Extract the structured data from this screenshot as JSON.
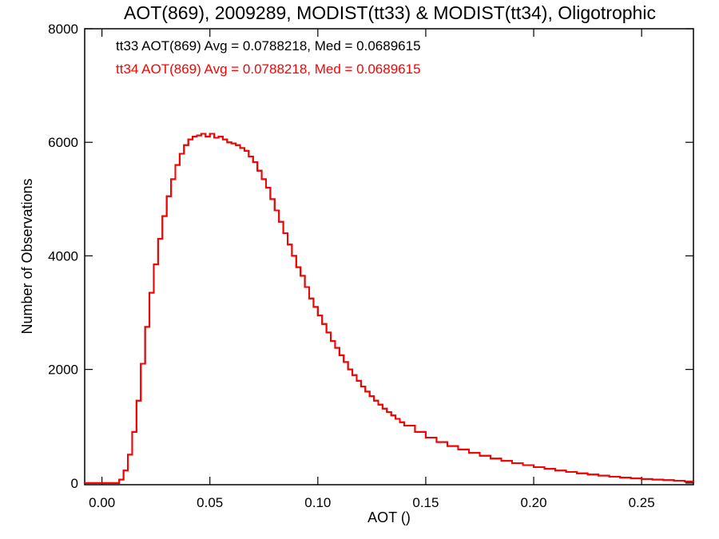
{
  "chart_data": {
    "type": "line",
    "title": "AOT(869), 2009289, MODIST(tt33) & MODIST(tt34), Oligotrophic",
    "xlabel": "AOT ()",
    "ylabel": "Number of Observations",
    "xlim": [
      -0.008,
      0.274
    ],
    "ylim": [
      -30,
      8000
    ],
    "x_ticks": [
      0.0,
      0.05,
      0.1,
      0.15,
      0.2,
      0.25
    ],
    "x_tick_labels": [
      "0.00",
      "0.05",
      "0.10",
      "0.15",
      "0.20",
      "0.25"
    ],
    "y_ticks": [
      0,
      2000,
      4000,
      6000,
      8000
    ],
    "y_tick_labels": [
      "0",
      "2000",
      "4000",
      "6000",
      "8000"
    ],
    "grid": false,
    "step": "histogram",
    "annotations": [
      {
        "text": "tt33 AOT(869) Avg = 0.0788218, Med = 0.0689615",
        "color": "#000000"
      },
      {
        "text": "tt34 AOT(869) Avg = 0.0788218, Med = 0.0689615",
        "color": "#ff0000"
      }
    ],
    "x": [
      0.0,
      0.005,
      0.008,
      0.01,
      0.012,
      0.014,
      0.016,
      0.018,
      0.02,
      0.022,
      0.024,
      0.026,
      0.028,
      0.03,
      0.032,
      0.034,
      0.036,
      0.038,
      0.04,
      0.042,
      0.044,
      0.046,
      0.048,
      0.05,
      0.052,
      0.054,
      0.056,
      0.058,
      0.06,
      0.062,
      0.064,
      0.066,
      0.068,
      0.07,
      0.072,
      0.074,
      0.076,
      0.078,
      0.08,
      0.082,
      0.084,
      0.086,
      0.088,
      0.09,
      0.092,
      0.094,
      0.096,
      0.098,
      0.1,
      0.102,
      0.104,
      0.106,
      0.108,
      0.11,
      0.112,
      0.114,
      0.116,
      0.118,
      0.12,
      0.122,
      0.124,
      0.126,
      0.128,
      0.13,
      0.132,
      0.134,
      0.136,
      0.138,
      0.14,
      0.145,
      0.15,
      0.155,
      0.16,
      0.165,
      0.17,
      0.175,
      0.18,
      0.185,
      0.19,
      0.195,
      0.2,
      0.205,
      0.21,
      0.215,
      0.22,
      0.225,
      0.23,
      0.235,
      0.24,
      0.245,
      0.25,
      0.255,
      0.26,
      0.265,
      0.27,
      0.274
    ],
    "series": [
      {
        "name": "tt33",
        "color": "#000000",
        "values": [
          0,
          0,
          60,
          220,
          500,
          900,
          1450,
          2100,
          2750,
          3350,
          3850,
          4300,
          4700,
          5050,
          5350,
          5600,
          5800,
          5950,
          6050,
          6100,
          6120,
          6150,
          6100,
          6150,
          6080,
          6100,
          6050,
          6000,
          5980,
          5950,
          5900,
          5850,
          5750,
          5650,
          5500,
          5350,
          5200,
          5000,
          4800,
          4600,
          4400,
          4200,
          4000,
          3800,
          3650,
          3450,
          3250,
          3100,
          2950,
          2800,
          2650,
          2500,
          2380,
          2250,
          2130,
          2000,
          1900,
          1800,
          1700,
          1610,
          1530,
          1450,
          1380,
          1310,
          1250,
          1190,
          1130,
          1070,
          1010,
          900,
          800,
          720,
          650,
          590,
          530,
          480,
          430,
          390,
          350,
          315,
          280,
          250,
          220,
          195,
          170,
          150,
          130,
          110,
          95,
          80,
          70,
          60,
          50,
          40,
          25,
          15
        ]
      },
      {
        "name": "tt34",
        "color": "#ff0000",
        "values": [
          0,
          0,
          60,
          220,
          500,
          900,
          1450,
          2100,
          2750,
          3350,
          3850,
          4300,
          4700,
          5050,
          5350,
          5600,
          5800,
          5950,
          6050,
          6100,
          6120,
          6150,
          6100,
          6150,
          6080,
          6100,
          6050,
          6000,
          5980,
          5950,
          5900,
          5850,
          5750,
          5650,
          5500,
          5350,
          5200,
          5000,
          4800,
          4600,
          4400,
          4200,
          4000,
          3800,
          3650,
          3450,
          3250,
          3100,
          2950,
          2800,
          2650,
          2500,
          2380,
          2250,
          2130,
          2000,
          1900,
          1800,
          1700,
          1610,
          1530,
          1450,
          1380,
          1310,
          1250,
          1190,
          1130,
          1070,
          1010,
          900,
          800,
          720,
          650,
          590,
          530,
          480,
          430,
          390,
          350,
          315,
          280,
          250,
          220,
          195,
          170,
          150,
          130,
          110,
          95,
          80,
          70,
          60,
          50,
          40,
          25,
          15
        ]
      }
    ]
  }
}
